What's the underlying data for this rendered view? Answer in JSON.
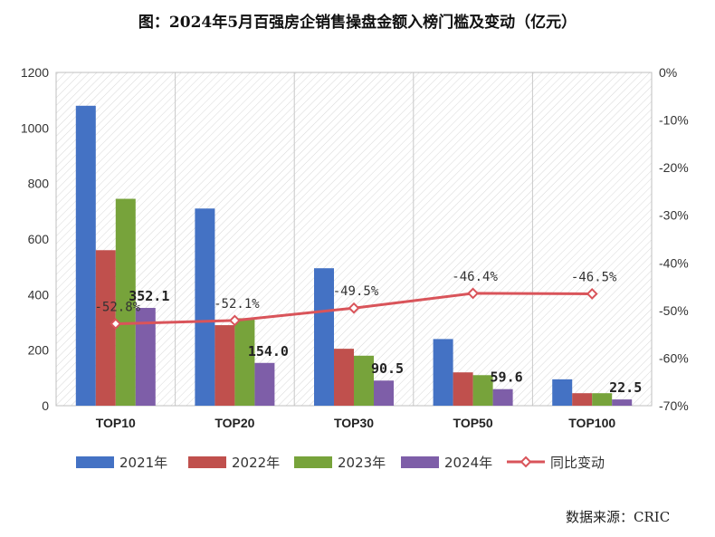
{
  "page": {
    "title": "图：2024年5月百强房企销售操盘金额入榜门槛及变动（亿元）",
    "source": "数据来源：CRIC"
  },
  "chart_data": {
    "type": "bar",
    "title": "图：2024年5月百强房企销售操盘金额入榜门槛及变动（亿元）",
    "xlabel": "",
    "ylabel": "",
    "categories": [
      "TOP10",
      "TOP20",
      "TOP30",
      "TOP50",
      "TOP100"
    ],
    "series": [
      {
        "name": "2021年",
        "color": "#4472C4",
        "values": [
          1080,
          710,
          495,
          240,
          95
        ]
      },
      {
        "name": "2022年",
        "color": "#C0504D",
        "values": [
          560,
          290,
          205,
          120,
          45
        ]
      },
      {
        "name": "2023年",
        "color": "#77A33B",
        "values": [
          745,
          315,
          180,
          110,
          45
        ]
      },
      {
        "name": "2024年",
        "color": "#7E5EA8",
        "values": [
          352.1,
          154.0,
          90.5,
          59.6,
          22.5
        ],
        "labels": [
          "352.1",
          "154.0",
          "90.5",
          "59.6",
          "22.5"
        ]
      }
    ],
    "line_series": {
      "name": "同比变动",
      "color": "#D9545A",
      "axis": "right",
      "values": [
        -52.8,
        -52.1,
        -49.5,
        -46.4,
        -46.5
      ],
      "labels": [
        "-52.8%",
        "-52.1%",
        "-49.5%",
        "-46.4%",
        "-46.5%"
      ]
    },
    "ylim": [
      0,
      1200
    ],
    "yticks": [
      "0",
      "200",
      "400",
      "600",
      "800",
      "1000",
      "1200"
    ],
    "ylim_right": [
      -70,
      0
    ],
    "yticks_right": [
      "0%",
      "-10%",
      "-20%",
      "-30%",
      "-40%",
      "-50%",
      "-60%",
      "-70%"
    ],
    "grid": "vertical-hatched",
    "legend_position": "bottom"
  }
}
